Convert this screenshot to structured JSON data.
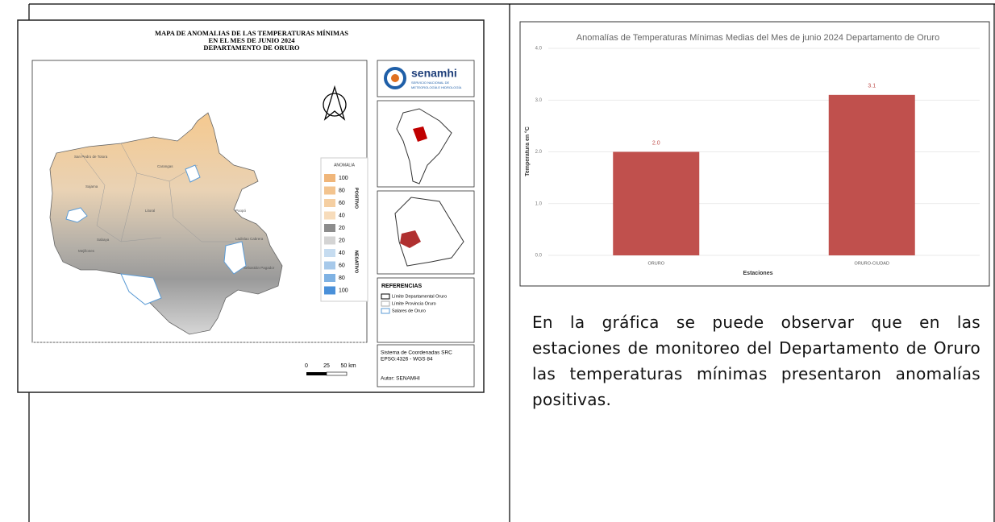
{
  "map": {
    "title": [
      "MAPA DE ANOMALIAS DE LAS TEMPERATURAS MÍNIMAS",
      "EN EL MES DE JUNIO 2024",
      "DEPARTAMENTO DE ORURO"
    ],
    "logo": "senamhi",
    "logo_subtitle": [
      "SERVICIO NACIONAL DE",
      "METEOROLOGÍA E HIDROLOGÍA"
    ],
    "legend_title": "ANOMALIA",
    "legend_positive": "POSITIVO",
    "legend_negative": "NEGATIVO",
    "legend": [
      {
        "value": 100,
        "color": "#f0b67a"
      },
      {
        "value": 80,
        "color": "#f3c48f"
      },
      {
        "value": 60,
        "color": "#f5cfa2"
      },
      {
        "value": 40,
        "color": "#f7dcbb"
      },
      {
        "value": 20,
        "color": "#8c8c8c"
      },
      {
        "value": 20,
        "color": "#d4d4d4"
      },
      {
        "value": 40,
        "color": "#c6dcf0"
      },
      {
        "value": 60,
        "color": "#a7c9ea"
      },
      {
        "value": 80,
        "color": "#7fb2e3"
      },
      {
        "value": 100,
        "color": "#4a90d9"
      }
    ],
    "references_title": "REFERENCIAS",
    "references": [
      "Límite Departamental Oruro",
      "Límite Provincia Oruro",
      "Salares de Oruro"
    ],
    "coordinates": [
      "Sistema de Coordenadas SRC",
      "EPSG:4326 - WGS 84"
    ],
    "author": "Autor: SENAMHI",
    "scale": [
      "0",
      "25",
      "50 km"
    ],
    "places": [
      "San Pedro de Totora",
      "Carangas",
      "Sajama",
      "Litoral",
      "Poopó",
      "Sabaya",
      "Mejillones",
      "Sebastián Pagador",
      "Ladislao Cabrera"
    ]
  },
  "chart_data": {
    "type": "bar",
    "title": "Anomalías de Temperaturas Mínimas Medias del Mes de junio 2024 Departamento de Oruro",
    "ylabel": "Temperatura en °C",
    "xlabel": "Estaciones",
    "categories": [
      "ORURO",
      "ORURO-CIUDAD"
    ],
    "values": [
      2.0,
      3.1
    ],
    "value_labels": [
      "2.0",
      "3.1"
    ],
    "color": "#c0504d",
    "ylim": [
      0,
      4
    ],
    "yticks": [
      {
        "value": 0,
        "label": "0.0"
      },
      {
        "value": 1,
        "label": "1.0"
      },
      {
        "value": 2,
        "label": "2.0"
      },
      {
        "value": 3,
        "label": "3.0"
      },
      {
        "value": 4,
        "label": "4.0"
      }
    ],
    "grid": true
  },
  "paragraph": "En la gráfica se puede observar que en las estaciones de monitoreo del Departamento de Oruro las temperaturas mínimas presentaron anomalías positivas."
}
